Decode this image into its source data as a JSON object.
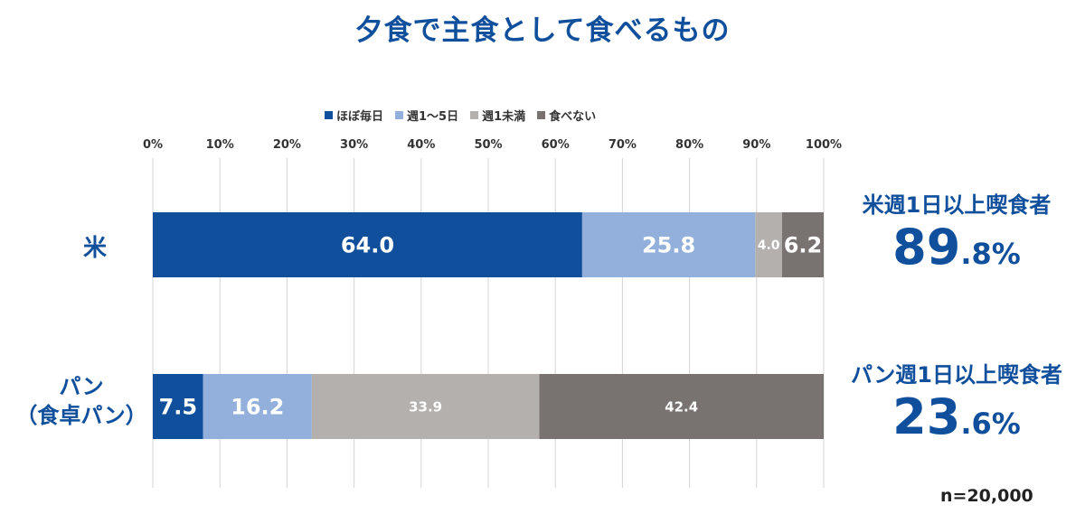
{
  "title": "夕食で主食として食べるもの",
  "chart_data": {
    "type": "bar",
    "orientation": "horizontal",
    "stacked": true,
    "title": "夕食で主食として食べるもの",
    "categories": [
      "米",
      "パン\n（食卓パン）"
    ],
    "series": [
      {
        "name": "ほぼ毎日",
        "values": [
          64.0,
          7.5
        ],
        "color": "#0f4f9c"
      },
      {
        "name": "週1～5日",
        "values": [
          25.8,
          16.2
        ],
        "color": "#93b0dd"
      },
      {
        "name": "週1未満",
        "values": [
          4.0,
          33.9
        ],
        "color": "#b3b0ae"
      },
      {
        "name": "食べない",
        "values": [
          6.2,
          42.4
        ],
        "color": "#787271"
      }
    ],
    "xlim": [
      0,
      100
    ],
    "x_ticks": [
      "0%",
      "10%",
      "20%",
      "30%",
      "40%",
      "50%",
      "60%",
      "70%",
      "80%",
      "90%",
      "100%"
    ],
    "grid": true,
    "legend_position": "top"
  },
  "row_labels": {
    "rice": "米",
    "bread_line1": "パン",
    "bread_line2": "（食卓パン）"
  },
  "summaries": [
    {
      "label": "米週1日以上喫食者",
      "value_int": "89",
      "value_rest": ".8%"
    },
    {
      "label": "パン週1日以上喫食者",
      "value_int": "23",
      "value_rest": ".6%"
    }
  ],
  "sample_size": "n=20,000"
}
